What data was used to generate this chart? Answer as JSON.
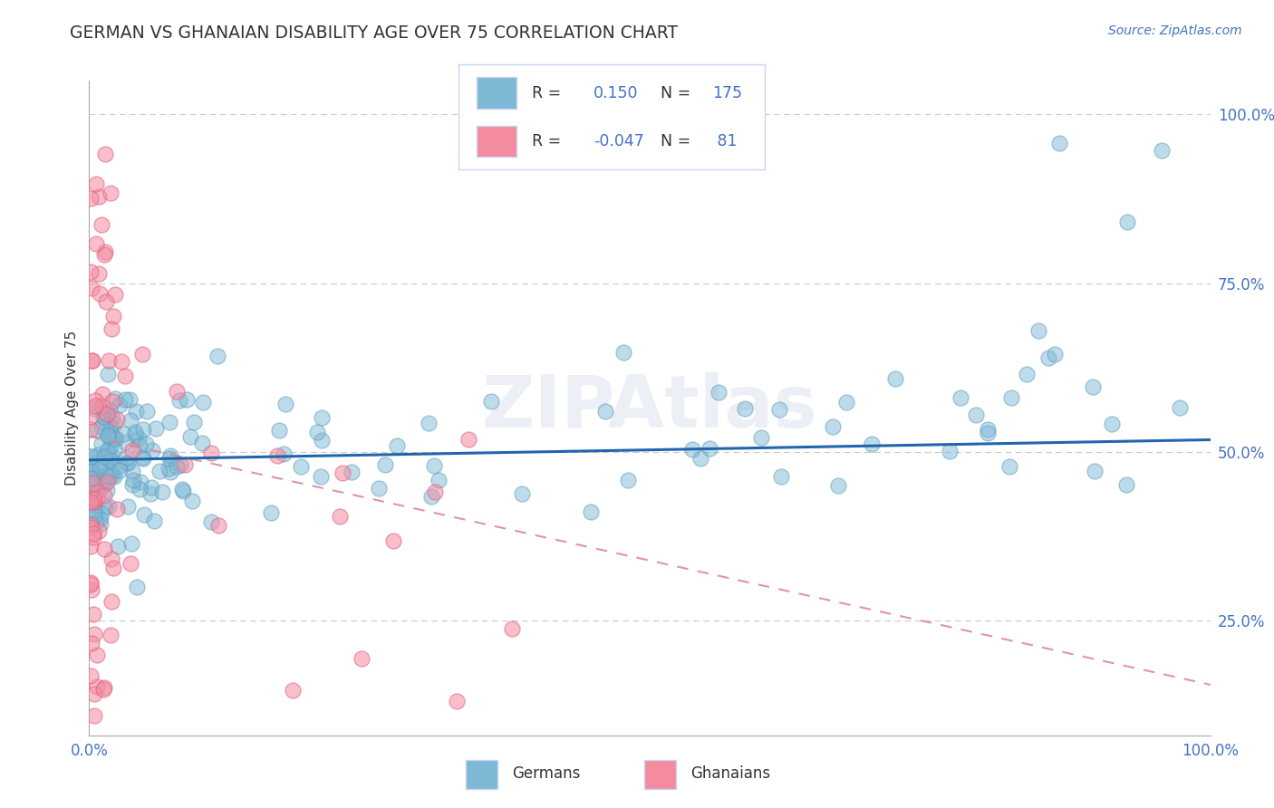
{
  "title": "GERMAN VS GHANAIAN DISABILITY AGE OVER 75 CORRELATION CHART",
  "source_text": "Source: ZipAtlas.com",
  "ylabel": "Disability Age Over 75",
  "watermark": "ZIPAtlas",
  "xlim": [
    0.0,
    1.0
  ],
  "ylim": [
    0.08,
    1.05
  ],
  "ytick_vals": [
    0.25,
    0.5,
    0.75,
    1.0
  ],
  "ytick_labels": [
    "25.0%",
    "50.0%",
    "75.0%",
    "100.0%"
  ],
  "xtick_vals": [
    0.0,
    1.0
  ],
  "xtick_labels": [
    "0.0%",
    "100.0%"
  ],
  "german_color": "#7eb8d4",
  "ghanaian_color": "#f48ca0",
  "german_edge_color": "#5a9dc0",
  "ghanaian_edge_color": "#e06080",
  "german_line_color": "#2166ac",
  "ghanaian_line_color": "#d9848e",
  "german_R": 0.15,
  "german_N": 175,
  "ghanaian_R": -0.047,
  "ghanaian_N": 81,
  "background_color": "#ffffff",
  "grid_color": "#bbbbbb",
  "legend_box_color": "#f0f4ff",
  "legend_border_color": "#c8d4f0",
  "title_color": "#333333",
  "source_color": "#4472c4",
  "tick_color": "#4472c4",
  "ylabel_color": "#333333",
  "german_line_start_y": 0.488,
  "german_line_end_y": 0.518,
  "ghanaian_line_start_y": 0.523,
  "ghanaian_line_end_y": 0.155
}
